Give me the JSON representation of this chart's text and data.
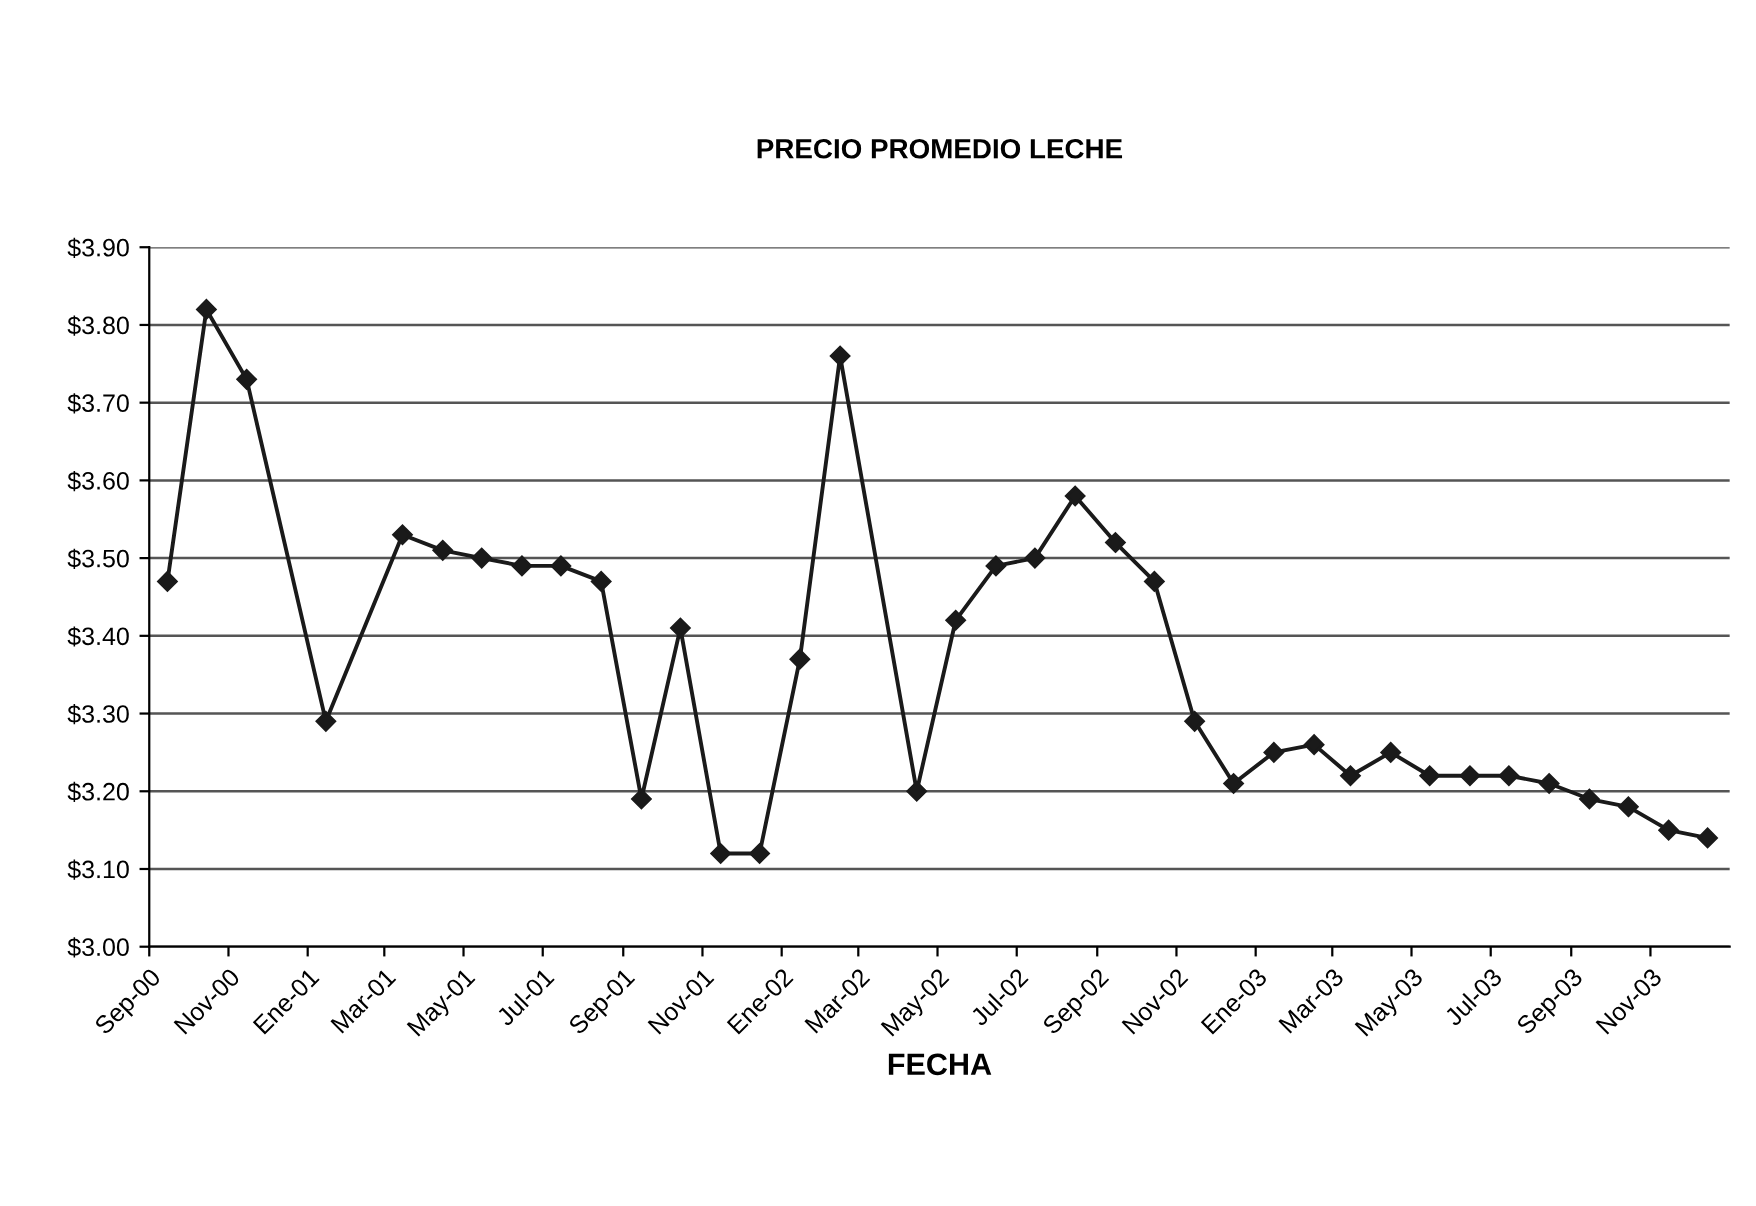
{
  "chart_data": {
    "type": "line",
    "title": "PRECIO PROMEDIO LECHE",
    "xlabel": "FECHA",
    "x": [
      "2000-09-15",
      "2000-10-15",
      "2000-11-15",
      "2001-01-15",
      "2001-03-15",
      "2001-04-15",
      "2001-05-15",
      "2001-06-15",
      "2001-07-15",
      "2001-08-15",
      "2001-09-15",
      "2001-10-15",
      "2001-11-15",
      "2001-12-15",
      "2002-01-15",
      "2002-02-15",
      "2002-04-15",
      "2002-05-15",
      "2002-06-15",
      "2002-07-15",
      "2002-08-15",
      "2002-09-15",
      "2002-10-15",
      "2002-11-15",
      "2002-12-15",
      "2003-01-15",
      "2003-02-15",
      "2003-03-15",
      "2003-04-15",
      "2003-05-15",
      "2003-06-15",
      "2003-07-15",
      "2003-08-15",
      "2003-09-15",
      "2003-10-15",
      "2003-11-15",
      "2003-12-15"
    ],
    "series": [
      {
        "color": "#1a1a1a",
        "values": [
          3.47,
          3.82,
          3.73,
          3.29,
          3.53,
          3.51,
          3.5,
          3.49,
          3.49,
          3.47,
          3.19,
          3.41,
          3.12,
          3.12,
          3.37,
          3.76,
          3.2,
          3.42,
          3.49,
          3.5,
          3.58,
          3.52,
          3.47,
          3.29,
          3.21,
          3.25,
          3.26,
          3.22,
          3.25,
          3.22,
          3.22,
          3.22,
          3.21,
          3.19,
          3.18,
          3.15,
          3.14
        ]
      }
    ],
    "xlim": [
      "2000-09",
      "2004-01"
    ],
    "xticks": [
      {
        "value": "2000-09",
        "label": "Sep-00"
      },
      {
        "value": "2000-11",
        "label": "Nov-00"
      },
      {
        "value": "2001-01",
        "label": "Ene-01"
      },
      {
        "value": "2001-03",
        "label": "Mar-01"
      },
      {
        "value": "2001-05",
        "label": "May-01"
      },
      {
        "value": "2001-07",
        "label": "Jul-01"
      },
      {
        "value": "2001-09",
        "label": "Sep-01"
      },
      {
        "value": "2001-11",
        "label": "Nov-01"
      },
      {
        "value": "2002-01",
        "label": "Ene-02"
      },
      {
        "value": "2002-03",
        "label": "Mar-02"
      },
      {
        "value": "2002-05",
        "label": "May-02"
      },
      {
        "value": "2002-07",
        "label": "Jul-02"
      },
      {
        "value": "2002-09",
        "label": "Sep-02"
      },
      {
        "value": "2002-11",
        "label": "Nov-02"
      },
      {
        "value": "2003-01",
        "label": "Ene-03"
      },
      {
        "value": "2003-03",
        "label": "Mar-03"
      },
      {
        "value": "2003-05",
        "label": "May-03"
      },
      {
        "value": "2003-07",
        "label": "Jul-03"
      },
      {
        "value": "2003-09",
        "label": "Sep-03"
      },
      {
        "value": "2003-11",
        "label": "Nov-03"
      }
    ],
    "ylim": [
      3.0,
      3.9
    ],
    "yticks": [
      {
        "value": 3.0,
        "label": "$3.00"
      },
      {
        "value": 3.1,
        "label": "$3.10"
      },
      {
        "value": 3.2,
        "label": "$3.20"
      },
      {
        "value": 3.3,
        "label": "$3.30"
      },
      {
        "value": 3.4,
        "label": "$3.40"
      },
      {
        "value": 3.5,
        "label": "$3.50"
      },
      {
        "value": 3.6,
        "label": "$3.60"
      },
      {
        "value": 3.7,
        "label": "$3.70"
      },
      {
        "value": 3.8,
        "label": "$3.80"
      },
      {
        "value": 3.9,
        "label": "$3.90"
      }
    ],
    "grid": "y",
    "marker": "diamond",
    "line_style": "solid"
  }
}
